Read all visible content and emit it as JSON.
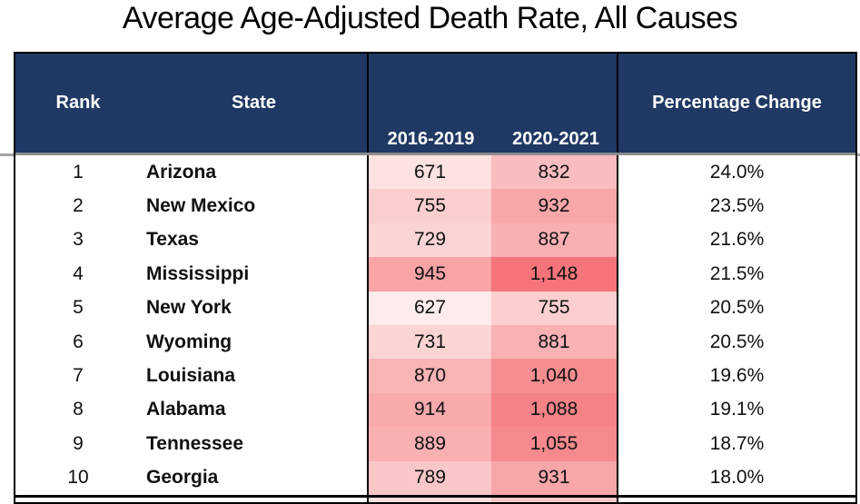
{
  "title": "Average Age-Adjusted Death Rate, All Causes",
  "table": {
    "headers": {
      "rank": "Rank",
      "state": "State",
      "period1": "2016-2019",
      "period2": "2020-2021",
      "pct": "Percentage Change"
    }
  },
  "colors": {
    "header_bg": "#1F3864",
    "header_text": "#FFFFFF",
    "border": "#000000",
    "gridline": "#A3A3A3"
  },
  "heat_scale": {
    "min_value": 627,
    "max_value": 1148,
    "min_color": "#FDECEB",
    "max_color": "#F4747A"
  },
  "partial_row": {
    "col1_color": "#FBDFDE",
    "col2_color": "#F8C8C6"
  },
  "chart_data": {
    "type": "table",
    "title": "Average Age-Adjusted Death Rate, All Causes",
    "columns": [
      "Rank",
      "State",
      "2016-2019",
      "2020-2021",
      "Percentage Change"
    ],
    "rows": [
      {
        "rank": "1",
        "state": "Arizona",
        "v1": 671,
        "v1_display": "671",
        "v2": 832,
        "v2_display": "832",
        "pct": "24.0%"
      },
      {
        "rank": "2",
        "state": "New Mexico",
        "v1": 755,
        "v1_display": "755",
        "v2": 932,
        "v2_display": "932",
        "pct": "23.5%"
      },
      {
        "rank": "3",
        "state": "Texas",
        "v1": 729,
        "v1_display": "729",
        "v2": 887,
        "v2_display": "887",
        "pct": "21.6%"
      },
      {
        "rank": "4",
        "state": "Mississippi",
        "v1": 945,
        "v1_display": "945",
        "v2": 1148,
        "v2_display": "1,148",
        "pct": "21.5%"
      },
      {
        "rank": "5",
        "state": "New York",
        "v1": 627,
        "v1_display": "627",
        "v2": 755,
        "v2_display": "755",
        "pct": "20.5%"
      },
      {
        "rank": "6",
        "state": "Wyoming",
        "v1": 731,
        "v1_display": "731",
        "v2": 881,
        "v2_display": "881",
        "pct": "20.5%"
      },
      {
        "rank": "7",
        "state": "Louisiana",
        "v1": 870,
        "v1_display": "870",
        "v2": 1040,
        "v2_display": "1,040",
        "pct": "19.6%"
      },
      {
        "rank": "8",
        "state": "Alabama",
        "v1": 914,
        "v1_display": "914",
        "v2": 1088,
        "v2_display": "1,088",
        "pct": "19.1%"
      },
      {
        "rank": "9",
        "state": "Tennessee",
        "v1": 889,
        "v1_display": "889",
        "v2": 1055,
        "v2_display": "1,055",
        "pct": "18.7%"
      },
      {
        "rank": "10",
        "state": "Georgia",
        "v1": 789,
        "v1_display": "789",
        "v2": 931,
        "v2_display": "931",
        "pct": "18.0%"
      }
    ]
  }
}
